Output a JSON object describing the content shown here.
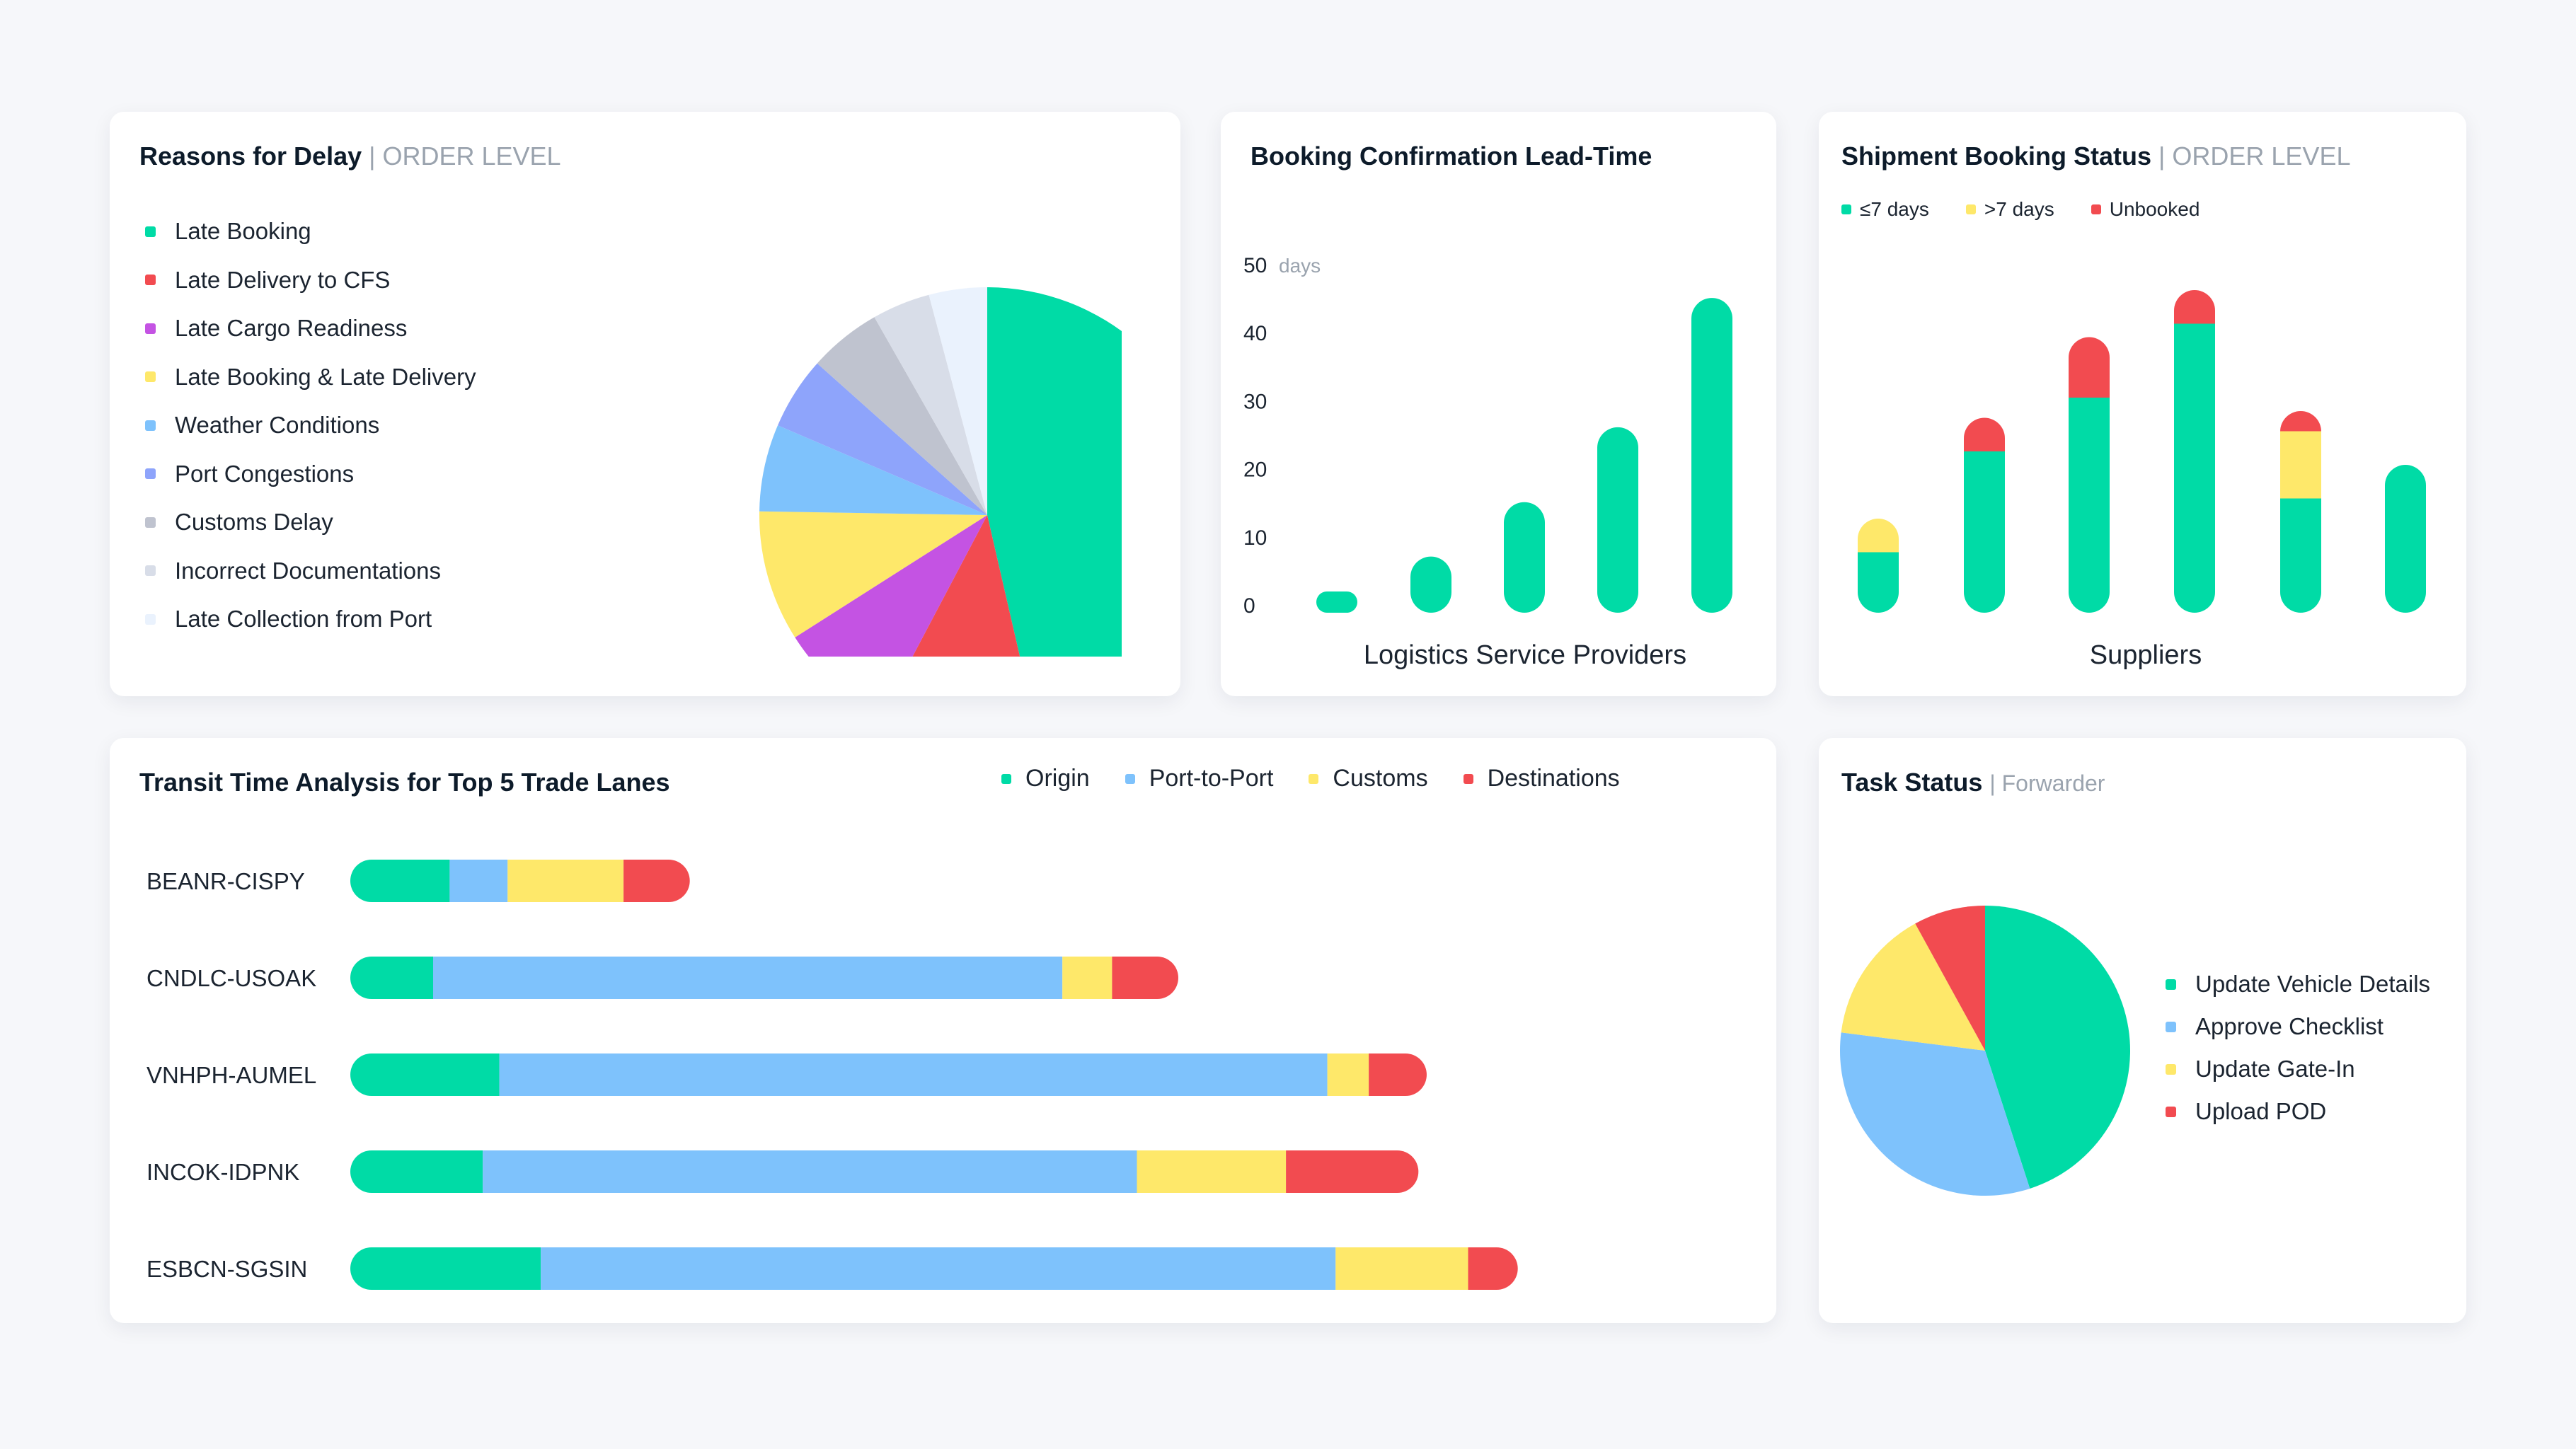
{
  "colors": {
    "green": "#00dba6",
    "red": "#f24b50",
    "purple": "#c453e3",
    "yellow": "#fee86a",
    "sky": "#7ec2fc",
    "periwinkle": "#8ea4fb",
    "gray": "#bfc3cf",
    "lightgray": "#d8dde8",
    "paleblue": "#eaf2fd"
  },
  "delay": {
    "title": "Reasons for Delay",
    "subtitle": "| ORDER LEVEL",
    "chart_data": {
      "type": "pie",
      "title": "Reasons for Delay | ORDER LEVEL",
      "labels": [
        "Late Booking",
        "Late Delivery to CFS",
        "Late Cargo Readiness",
        "Late Booking & Late Delivery",
        "Weather Conditions",
        "Port Congestions",
        "Customs Delay",
        "Incorrect Documentations",
        "Late Collection from Port"
      ],
      "values": [
        45,
        11,
        8,
        9,
        6,
        5,
        5,
        4,
        4
      ],
      "colors": [
        "#00dba6",
        "#f24b50",
        "#c453e3",
        "#fee86a",
        "#7ec2fc",
        "#8ea4fb",
        "#bfc3cf",
        "#d8dde8",
        "#eaf2fd"
      ],
      "legend": "left"
    }
  },
  "leadtime": {
    "title": "Booking Confirmation Lead-Time",
    "unit": "days",
    "chart_data": {
      "type": "bar",
      "title": "Booking Confirmation Lead-Time",
      "xlabel": "Logistics Service Providers",
      "ylabel": "days",
      "yticks": [
        0,
        10,
        20,
        30,
        40,
        50
      ],
      "ylim": [
        0,
        50
      ],
      "values": [
        0,
        7,
        15,
        26,
        45
      ],
      "color": "#00dba6"
    }
  },
  "booking": {
    "title": "Shipment Booking Status",
    "subtitle": "| ORDER LEVEL",
    "chart_data": {
      "type": "bar",
      "stacked": true,
      "title": "Shipment Booking Status | ORDER LEVEL",
      "xlabel": "Suppliers",
      "legend": "top-left",
      "series": [
        {
          "name": "≤7 days",
          "color": "#00dba6",
          "values": [
            9,
            24,
            32,
            43,
            17,
            22
          ]
        },
        {
          "name": ">7 days",
          "color": "#fee86a",
          "values": [
            5,
            0,
            0,
            0,
            10,
            0
          ]
        },
        {
          "name": "Unbooked",
          "color": "#f24b50",
          "values": [
            0,
            5,
            9,
            5,
            3,
            0
          ]
        }
      ]
    }
  },
  "transit": {
    "title": "Transit Time Analysis for Top 5 Trade Lanes",
    "chart_data": {
      "type": "bar",
      "orientation": "horizontal",
      "stacked": true,
      "title": "Transit Time Analysis for Top 5 Trade Lanes",
      "legend": "top-right",
      "categories": [
        "BEANR-CISPY",
        "CNDLC-USOAK",
        "VNHPH-AUMEL",
        "INCOK-IDPNK",
        "ESBCN-SGSIN"
      ],
      "series": [
        {
          "name": "Origin",
          "color": "#00dba6",
          "values": [
            6,
            5,
            9,
            8,
            11.5
          ]
        },
        {
          "name": "Port-to-Port",
          "color": "#7ec2fc",
          "values": [
            3.5,
            38,
            50,
            39.5,
            48
          ]
        },
        {
          "name": "Customs",
          "color": "#fee86a",
          "values": [
            7,
            3,
            2.5,
            9,
            8
          ]
        },
        {
          "name": "Destinations",
          "color": "#f24b50",
          "values": [
            4,
            4,
            3.5,
            8,
            3
          ]
        }
      ]
    }
  },
  "task": {
    "title": "Task Status",
    "subtitle": "| Forwarder",
    "chart_data": {
      "type": "pie",
      "title": "Task Status | Forwarder",
      "labels": [
        "Update Vehicle Details",
        "Approve Checklist",
        "Update Gate-In",
        "Upload POD"
      ],
      "values": [
        45,
        32,
        15,
        8
      ],
      "colors": [
        "#00dba6",
        "#7ec2fc",
        "#fee86a",
        "#f24b50"
      ],
      "legend": "right"
    }
  }
}
